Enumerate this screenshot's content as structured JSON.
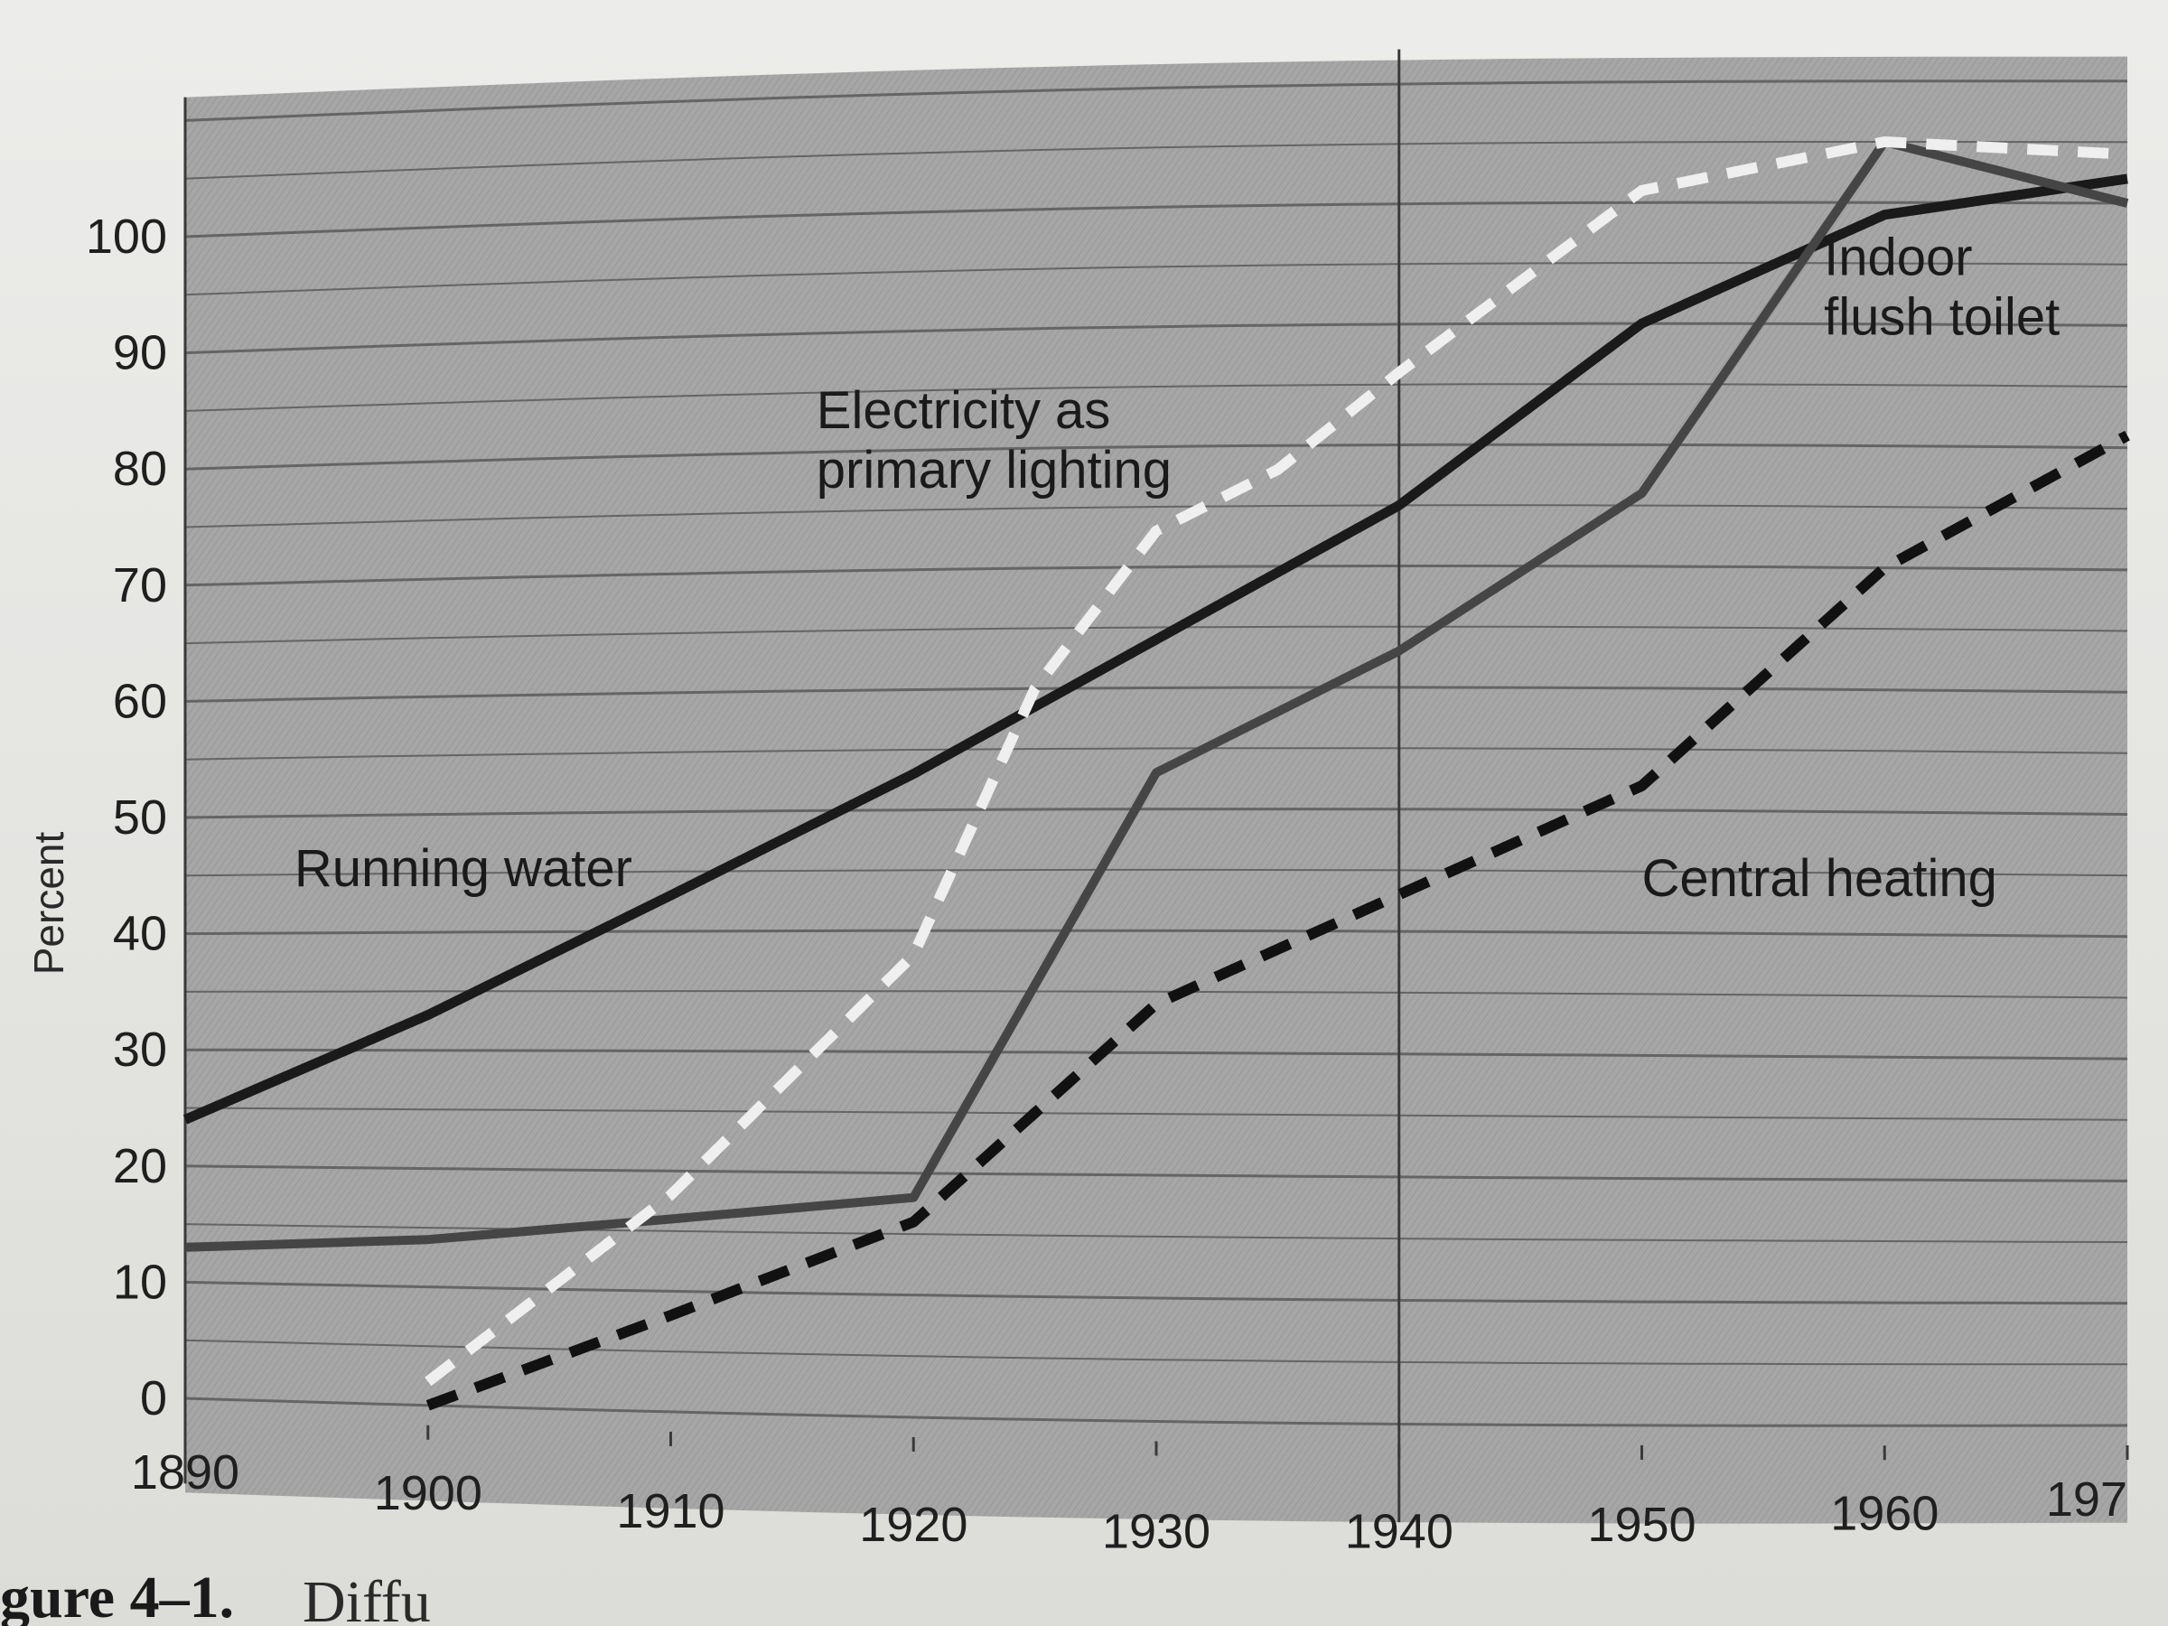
{
  "chart_data": {
    "type": "line",
    "ylabel": "Percent",
    "xlabel": "",
    "x_ticks": [
      "1890",
      "1900",
      "1910",
      "1920",
      "1930",
      "1940",
      "1950",
      "1960",
      "197"
    ],
    "y_ticks": [
      "0",
      "10",
      "20",
      "30",
      "40",
      "50",
      "60",
      "70",
      "80",
      "90",
      "100"
    ],
    "xlim": [
      1890,
      1970
    ],
    "ylim": [
      0,
      100
    ],
    "grid": true,
    "series": [
      {
        "name": "Running water",
        "label_lines": [
          "Running water"
        ],
        "style": "solid-black",
        "color": "#1a1a1a",
        "x": [
          1890,
          1900,
          1910,
          1920,
          1930,
          1940,
          1950,
          1960,
          1970
        ],
        "y": [
          24,
          33,
          43,
          53,
          64,
          75,
          90,
          99,
          102
        ]
      },
      {
        "name": "Indoor flush toilet",
        "label_lines": [
          "Indoor",
          "flush toilet"
        ],
        "style": "solid-gray",
        "color": "#454545",
        "x": [
          1890,
          1900,
          1910,
          1920,
          1930,
          1940,
          1950,
          1960,
          1970
        ],
        "y": [
          13,
          14,
          16,
          18,
          53,
          63,
          76,
          105,
          100
        ]
      },
      {
        "name": "Electricity as primary lighting",
        "label_lines": [
          "Electricity as",
          "primary lighting"
        ],
        "style": "dashed-light",
        "color": "#efefef",
        "x": [
          1900,
          1910,
          1920,
          1925,
          1930,
          1935,
          1940,
          1950,
          1960,
          1970
        ],
        "y": [
          2,
          18,
          38,
          60,
          73,
          78,
          86,
          101,
          105,
          104
        ]
      },
      {
        "name": "Central heating",
        "label_lines": [
          "Central heating"
        ],
        "style": "dashed-black",
        "color": "#111111",
        "x": [
          1900,
          1910,
          1920,
          1930,
          1940,
          1950,
          1960,
          1970
        ],
        "y": [
          0,
          8,
          16,
          34,
          43,
          52,
          70,
          81
        ]
      }
    ],
    "annotations": {
      "vertical_line_at": 1940
    }
  },
  "caption": {
    "visible_text": "gure 4–1.",
    "trailing_text": "Diffu"
  },
  "colors": {
    "panel_fill": "#a9a9a9",
    "grid": "#4f4f4f",
    "page": "#e6e6e3"
  }
}
